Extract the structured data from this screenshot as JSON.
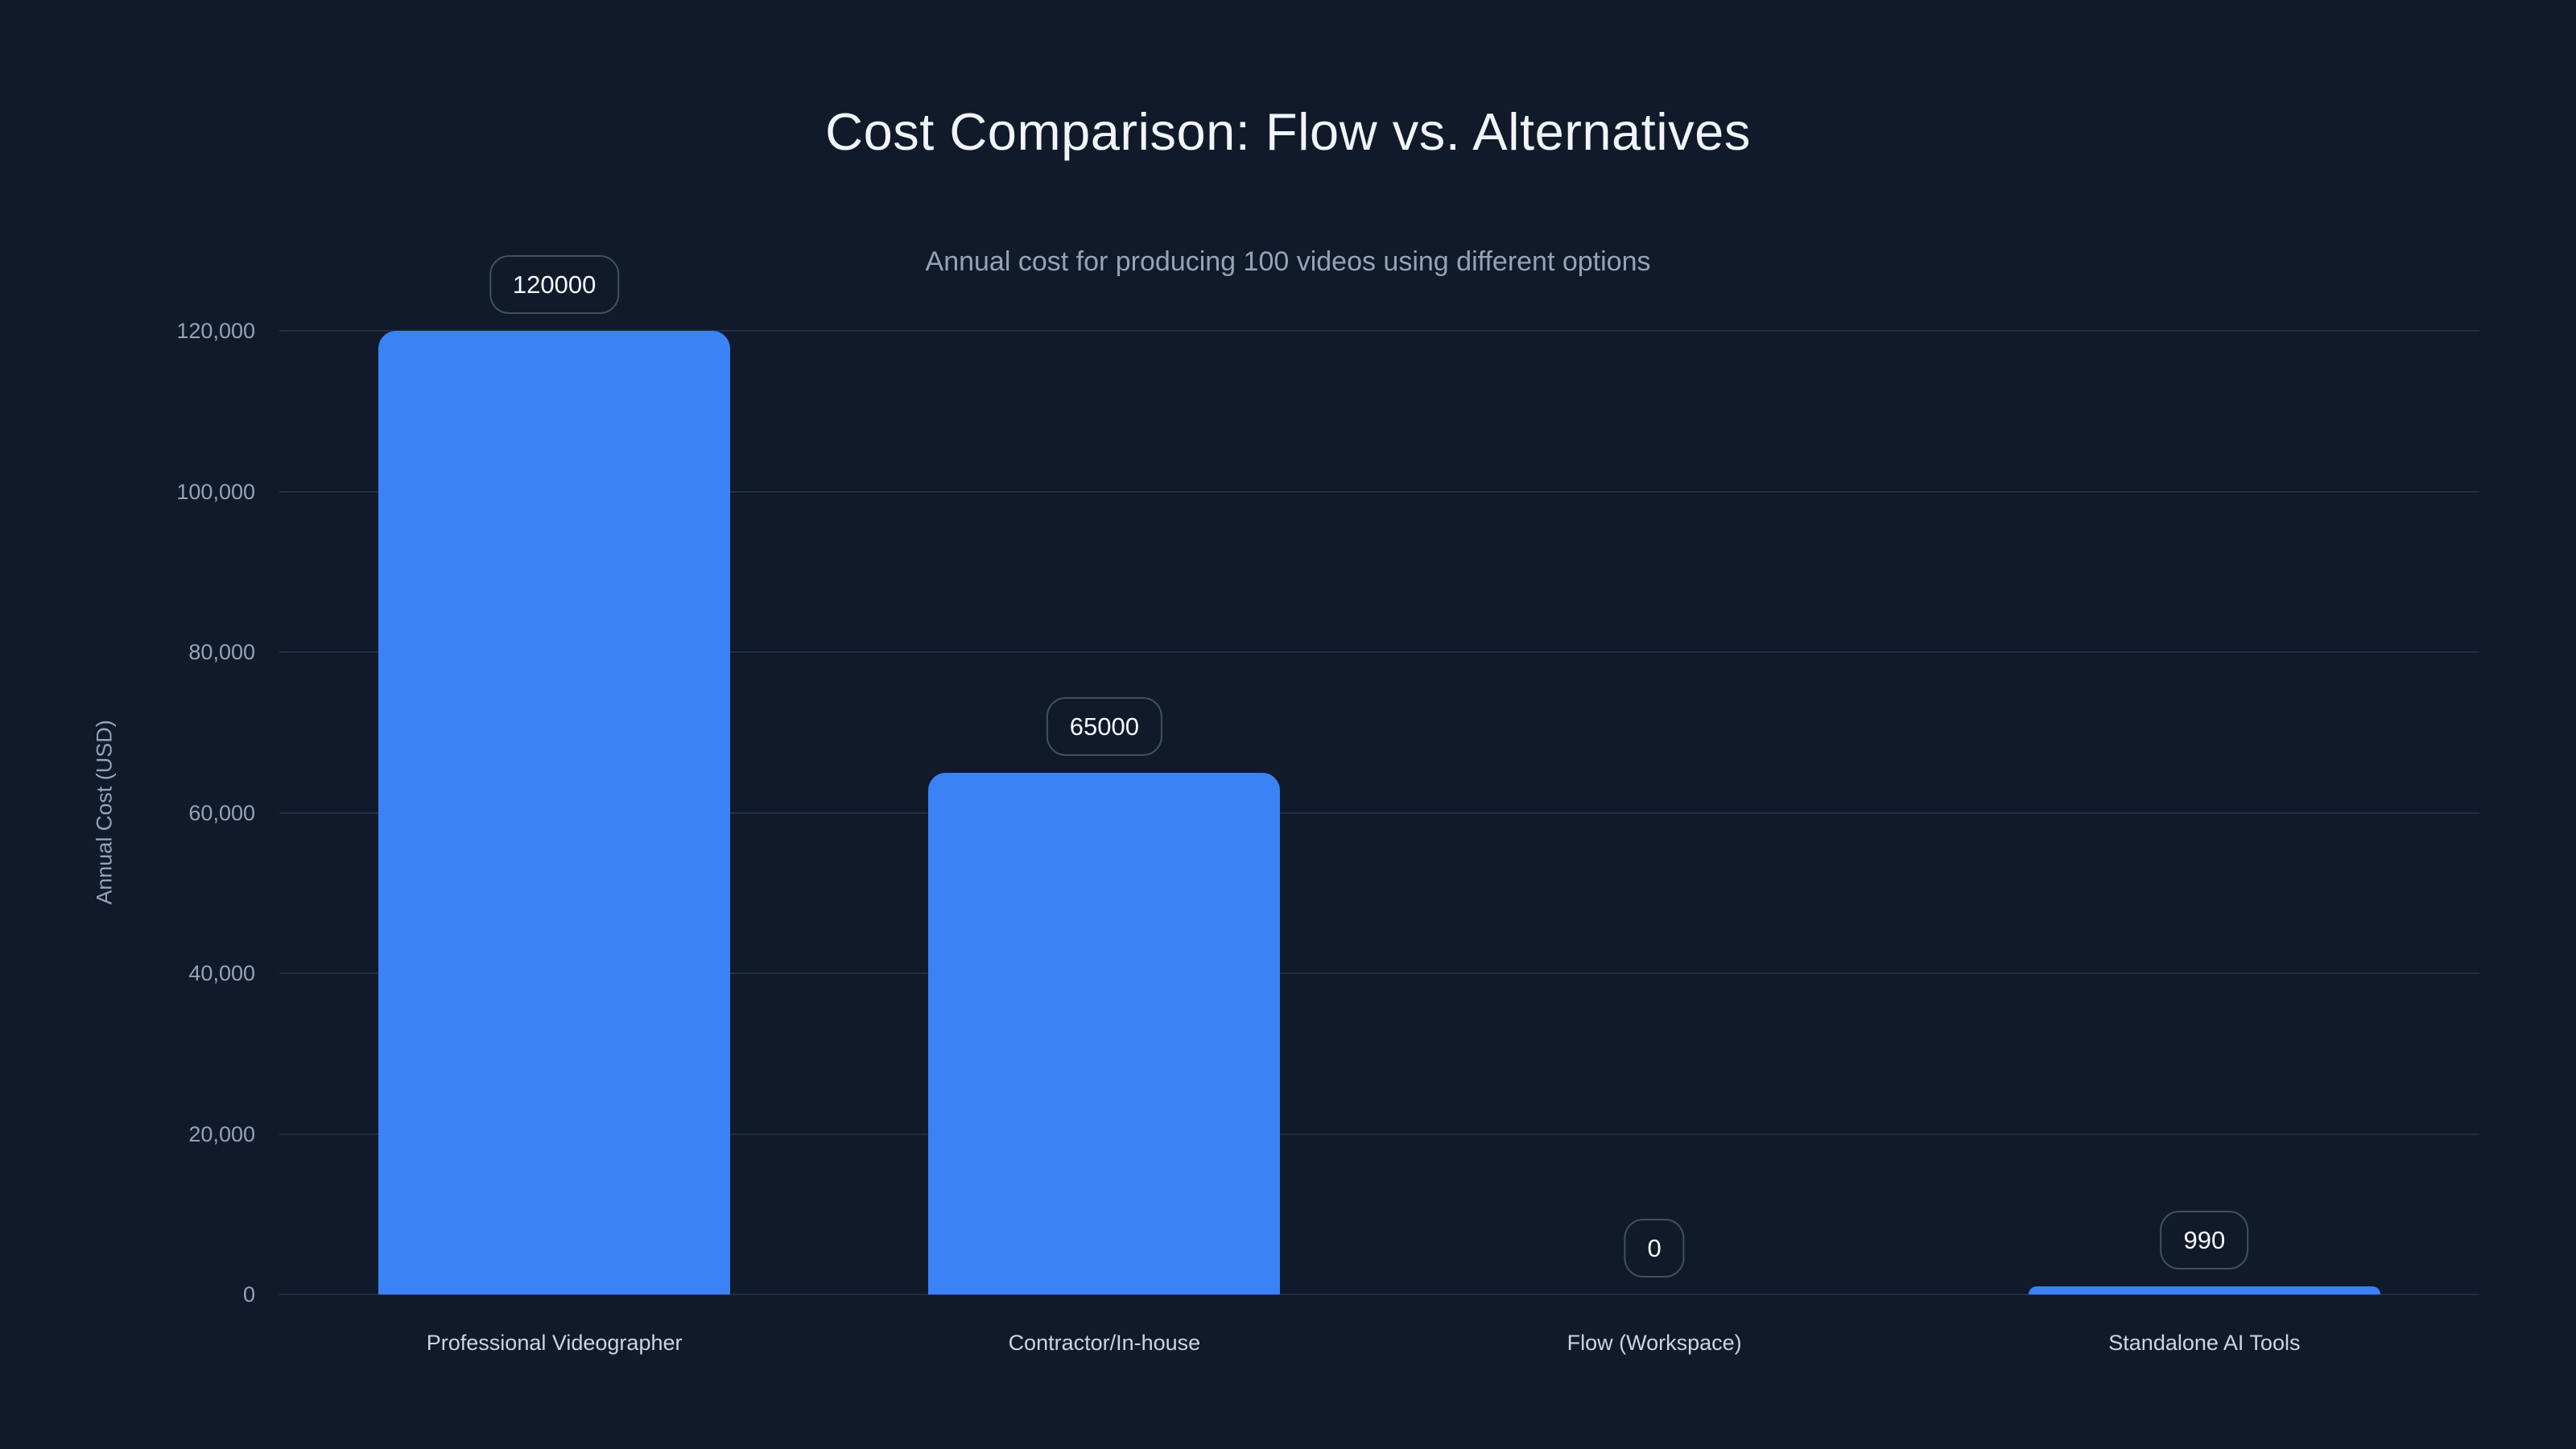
{
  "header": {
    "title": "Cost Comparison: Flow vs. Alternatives",
    "subtitle": "Annual cost for producing 100 videos using different options"
  },
  "chart_data": {
    "type": "bar",
    "title": "Cost Comparison: Flow vs. Alternatives",
    "subtitle": "Annual cost for producing 100 videos using different options",
    "categories": [
      "Professional Videographer",
      "Contractor/In-house",
      "Flow (Workspace)",
      "Standalone AI Tools"
    ],
    "values": [
      120000,
      65000,
      0,
      990
    ],
    "value_labels": [
      "120000",
      "65000",
      "0",
      "990"
    ],
    "xlabel": "",
    "ylabel": "Annual Cost (USD)",
    "ylim": [
      0,
      120000
    ],
    "ytick_values": [
      0,
      20000,
      40000,
      60000,
      80000,
      100000,
      120000
    ],
    "ytick_labels": [
      "0",
      "20,000",
      "40,000",
      "60,000",
      "80,000",
      "100,000",
      "120,000"
    ],
    "grid": "horizontal",
    "legend_position": "none",
    "colors": {
      "background": "#111a2b",
      "bar": "#3b82f6",
      "gridline": "#222e44",
      "tick_text": "#94a3b8",
      "category_text": "#cbd5e1",
      "title_text": "#f1f5f9",
      "subtitle_text": "#94a3b8",
      "value_text": "#f8fafc",
      "value_box_border": "#414e63"
    }
  }
}
